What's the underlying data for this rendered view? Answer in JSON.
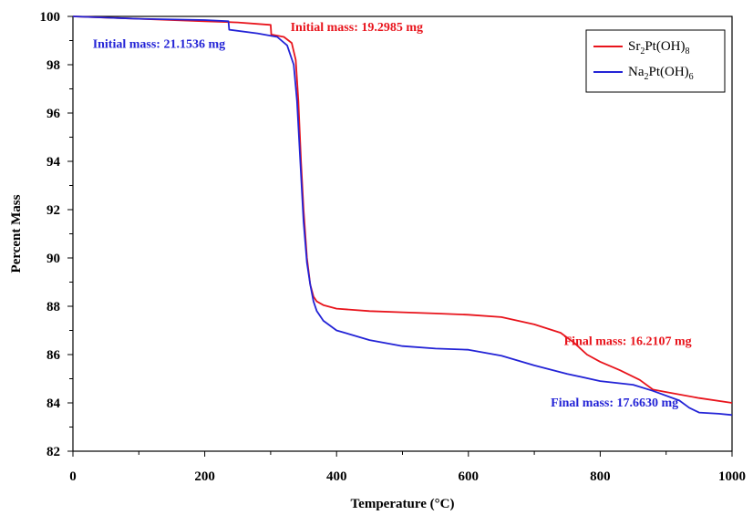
{
  "chart_data": {
    "type": "line",
    "xlabel": "Temperature (°C)",
    "ylabel": "Percent Mass",
    "xlim": [
      0,
      1000
    ],
    "ylim": [
      82,
      100
    ],
    "x_ticks": [
      "0",
      "200",
      "400",
      "600",
      "800",
      "1000"
    ],
    "y_ticks": [
      "82",
      "84",
      "86",
      "88",
      "90",
      "92",
      "94",
      "96",
      "98",
      "100"
    ],
    "grid": false,
    "legend_position": "top-right",
    "series": [
      {
        "name": "Sr2Pt(OH)8",
        "legend": {
          "a": "Sr",
          "a_sub": "2",
          "b": "Pt(OH)",
          "b_sub": "8"
        },
        "color": "#e8141c",
        "x": [
          0,
          50,
          100,
          150,
          200,
          250,
          300,
          301,
          320,
          332,
          338,
          342,
          346,
          350,
          355,
          360,
          365,
          370,
          380,
          400,
          450,
          500,
          550,
          600,
          650,
          700,
          740,
          760,
          780,
          800,
          830,
          860,
          880,
          900,
          950,
          1000
        ],
        "y": [
          100,
          99.95,
          99.9,
          99.85,
          99.8,
          99.75,
          99.65,
          99.25,
          99.15,
          98.9,
          98.2,
          96.5,
          94.0,
          92.0,
          90.0,
          88.9,
          88.4,
          88.2,
          88.05,
          87.9,
          87.8,
          87.75,
          87.7,
          87.65,
          87.55,
          87.25,
          86.9,
          86.5,
          86.0,
          85.7,
          85.35,
          84.95,
          84.55,
          84.45,
          84.2,
          84.0
        ]
      },
      {
        "name": "Na2Pt(OH)6",
        "legend": {
          "a": "Na",
          "a_sub": "2",
          "b": "Pt(OH)",
          "b_sub": "6"
        },
        "color": "#2323d6",
        "x": [
          0,
          100,
          200,
          236,
          237,
          280,
          310,
          325,
          335,
          340,
          345,
          350,
          355,
          360,
          365,
          370,
          380,
          400,
          450,
          500,
          550,
          600,
          650,
          700,
          750,
          800,
          850,
          880,
          920,
          935,
          950,
          980,
          1000
        ],
        "y": [
          100,
          99.9,
          99.85,
          99.8,
          99.45,
          99.3,
          99.15,
          98.8,
          98.0,
          96.5,
          94.0,
          91.5,
          89.8,
          88.9,
          88.2,
          87.8,
          87.4,
          87.0,
          86.6,
          86.35,
          86.25,
          86.2,
          85.95,
          85.55,
          85.2,
          84.9,
          84.75,
          84.5,
          84.1,
          83.8,
          83.6,
          83.55,
          83.5
        ]
      }
    ],
    "annotations": [
      {
        "text": "Initial mass: 19.2985 mg",
        "color": "#e8141c",
        "x": 330,
        "y": 99.4
      },
      {
        "text": "Initial mass: 21.1536 mg",
        "color": "#2323d6",
        "x": 30,
        "y": 98.7
      },
      {
        "text": "Final mass: 16.2107 mg",
        "color": "#e8141c",
        "x": 745,
        "y": 86.4
      },
      {
        "text": "Final mass: 17.6630 mg",
        "color": "#2323d6",
        "x": 725,
        "y": 83.85
      }
    ]
  }
}
